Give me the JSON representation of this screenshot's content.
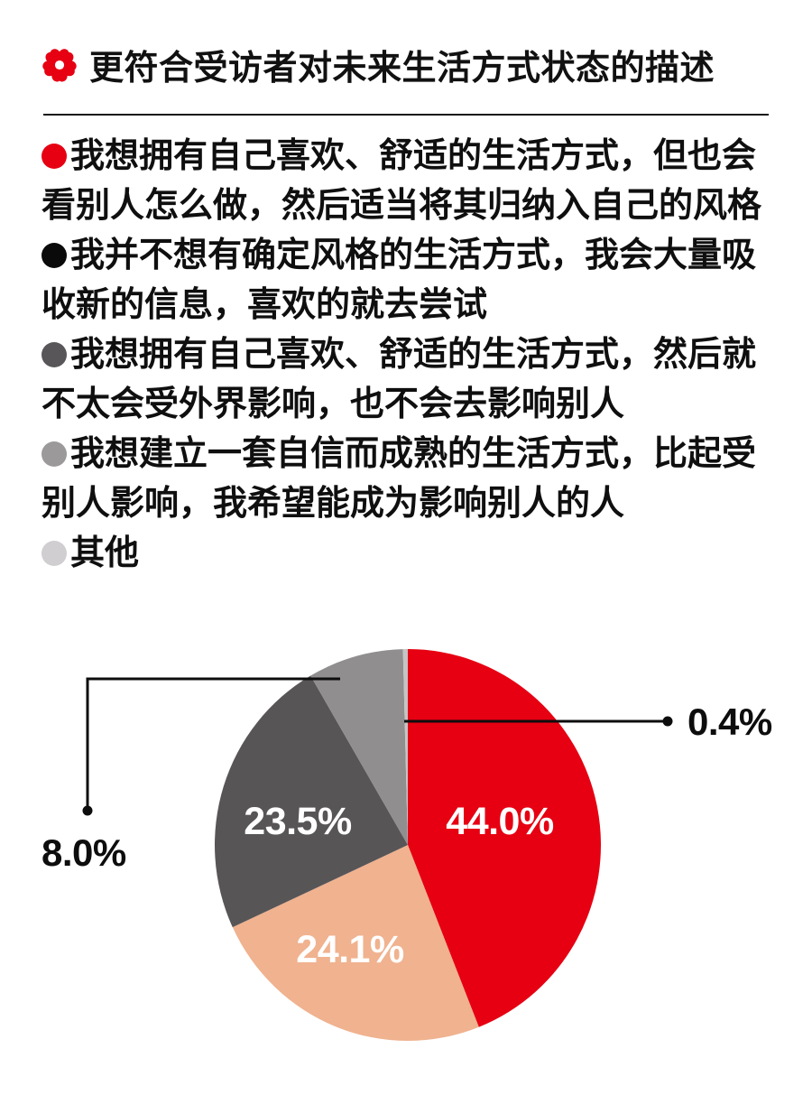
{
  "header": {
    "title": "更符合受访者对未来生活方式状态的描述",
    "accent_color": "#e60012"
  },
  "legend": {
    "items": [
      {
        "bullet_color": "#e60012",
        "label": "我想拥有自己喜欢、舒适的生活方式，但也会看别人怎么做，然后适当将其归纳入自己的风格"
      },
      {
        "bullet_color": "#0a0a0a",
        "label": "我并不想有确定风格的生活方式，我会大量吸收新的信息，喜欢的就去尝试"
      },
      {
        "bullet_color": "#595659",
        "label": "我想拥有自己喜欢、舒适的生活方式，然后就不太会受外界影响，也不会去影响别人"
      },
      {
        "bullet_color": "#9b999a",
        "label": "我想建立一套自信而成熟的生活方式，比起受别人影响，我希望能成为影响别人的人"
      },
      {
        "bullet_color": "#d0ced0",
        "label": "其他"
      }
    ]
  },
  "chart_data": {
    "type": "pie",
    "title": "更符合受访者对未来生活方式状态的描述",
    "unit": "percent",
    "direction": "clockwise",
    "start_angle": "12-o-clock",
    "legend_position": "top",
    "slices": [
      {
        "label": "我想拥有自己喜欢、舒适的生活方式，但也会看别人怎么做，然后适当将其归纳入自己的风格",
        "value": 44.0,
        "display": "44.0%",
        "color": "#e60012",
        "label_placement": "inside"
      },
      {
        "label": "我并不想有确定风格的生活方式，我会大量吸收新的信息，喜欢的就去尝试",
        "value": 24.1,
        "display": "24.1%",
        "color": "#f0b28f",
        "label_placement": "inside"
      },
      {
        "label": "我想拥有自己喜欢、舒适的生活方式，然后就不太会受外界影响，也不会去影响别人",
        "value": 23.5,
        "display": "23.5%",
        "color": "#585557",
        "label_placement": "inside"
      },
      {
        "label": "我想建立一套自信而成熟的生活方式，比起受别人影响，我希望能成为影响别人的人",
        "value": 8.0,
        "display": "8.0%",
        "color": "#908e8f",
        "label_placement": "callout-left"
      },
      {
        "label": "其他",
        "value": 0.4,
        "display": "0.4%",
        "color": "#c6c4c5",
        "label_placement": "callout-right"
      }
    ]
  }
}
